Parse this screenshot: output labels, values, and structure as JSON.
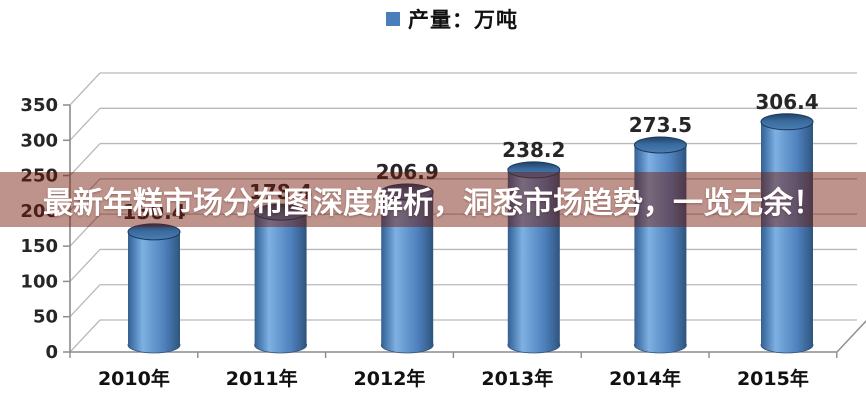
{
  "legend": {
    "label": "产量：万吨",
    "marker_color": "#4a7ebb"
  },
  "banner": {
    "text": "最新年糕市场分布图深度解析，洞悉市场趋势，一览无余！",
    "bg": "rgba(115,25,10,0.47)",
    "text_color": "#ffffff"
  },
  "chart_data": {
    "type": "bar",
    "style": "3d-cylinder",
    "title": "",
    "series_name": "产量：万吨",
    "categories": [
      "2010年",
      "2011年",
      "2012年",
      "2013年",
      "2014年",
      "2015年"
    ],
    "values": [
      150.4,
      178.4,
      206.9,
      238.2,
      273.5,
      306.4
    ],
    "labels": [
      "150.4",
      "178.4",
      "206.9",
      "238.2",
      "273.5",
      "306.4"
    ],
    "ylim": [
      0,
      350
    ],
    "ytick_step": 50,
    "yticks": [
      0,
      50,
      100,
      150,
      200,
      250,
      300,
      350
    ],
    "bar_color": "#4f81bd",
    "grid": true,
    "legend_position": "top",
    "xlabel": "",
    "ylabel": ""
  }
}
